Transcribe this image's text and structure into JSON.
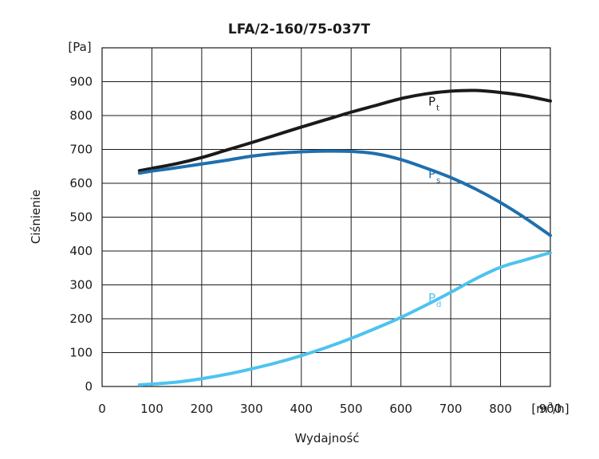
{
  "chart_data": {
    "type": "line",
    "title": "LFA/2-160/75-037T",
    "xlabel": "Wydajność",
    "ylabel": "Ciśnienie",
    "x_unit": "[m3/h]",
    "y_unit": "[Pa]",
    "xlim": [
      0,
      900
    ],
    "ylim": [
      0,
      1000
    ],
    "x_ticks": [
      0,
      100,
      200,
      300,
      400,
      500,
      600,
      700,
      800,
      900
    ],
    "y_ticks": [
      0,
      100,
      200,
      300,
      400,
      500,
      600,
      700,
      800,
      900
    ],
    "grid": true,
    "series": [
      {
        "name": "Pt",
        "name_main": "P",
        "name_sub": "t",
        "color": "#1a1a1a",
        "x": [
          75,
          100,
          150,
          200,
          250,
          300,
          350,
          400,
          450,
          500,
          550,
          600,
          650,
          700,
          750,
          800,
          850,
          900
        ],
        "y": [
          637,
          644,
          658,
          676,
          698,
          720,
          743,
          766,
          788,
          810,
          830,
          850,
          864,
          872,
          874,
          868,
          858,
          843
        ]
      },
      {
        "name": "Ps",
        "name_main": "P",
        "name_sub": "s",
        "color": "#1f6fae",
        "x": [
          75,
          100,
          150,
          200,
          250,
          300,
          350,
          400,
          450,
          500,
          550,
          600,
          650,
          700,
          750,
          800,
          850,
          900
        ],
        "y": [
          630,
          636,
          646,
          657,
          668,
          680,
          688,
          693,
          695,
          694,
          687,
          670,
          645,
          617,
          583,
          543,
          497,
          446
        ]
      },
      {
        "name": "Pd",
        "name_main": "P",
        "name_sub": "d",
        "color": "#4dc3ef",
        "x": [
          75,
          100,
          150,
          200,
          250,
          300,
          350,
          400,
          450,
          500,
          550,
          600,
          650,
          700,
          750,
          800,
          850,
          900
        ],
        "y": [
          5,
          7,
          13,
          23,
          36,
          52,
          70,
          91,
          115,
          142,
          172,
          204,
          240,
          278,
          318,
          352,
          374,
          395
        ]
      }
    ],
    "label_positions": {
      "Pt": [
        655,
        830
      ],
      "Ps": [
        655,
        615
      ],
      "Pd": [
        655,
        250
      ]
    }
  }
}
